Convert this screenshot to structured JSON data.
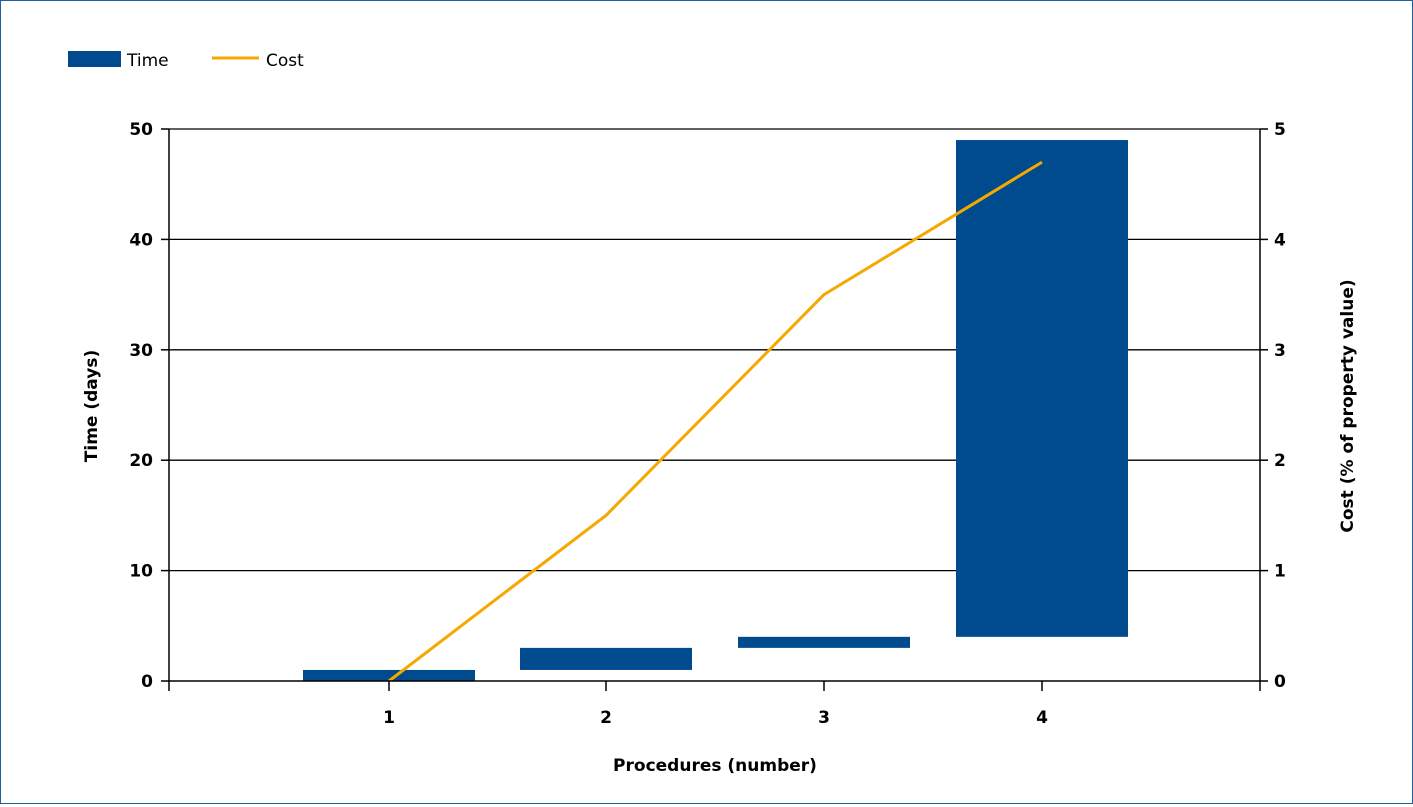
{
  "chart_data": {
    "type": "bar",
    "title": "",
    "xlabel": "Procedures (number)",
    "ylabel": "Time (days)",
    "y2label": "Cost (% of property value)",
    "categories": [
      "1",
      "2",
      "3",
      "4"
    ],
    "ylim": [
      0,
      50
    ],
    "y2lim": [
      0,
      5
    ],
    "yticks": [
      "0",
      "10",
      "20",
      "30",
      "40",
      "50"
    ],
    "y2ticks": [
      "0",
      "1",
      "2",
      "3",
      "4",
      "5"
    ],
    "grid": true,
    "legend_position": "top-left",
    "colors": {
      "time": "#004b8d",
      "cost": "#f5a800",
      "grid": "#000000"
    },
    "series": [
      {
        "name": "Time",
        "kind": "floating-bar",
        "axis": "left",
        "ranges": [
          [
            0,
            1
          ],
          [
            1,
            3
          ],
          [
            3,
            4
          ],
          [
            4,
            49
          ]
        ]
      },
      {
        "name": "Cost",
        "kind": "line",
        "axis": "right",
        "values": [
          0,
          1.5,
          3.5,
          4.7
        ]
      }
    ]
  }
}
